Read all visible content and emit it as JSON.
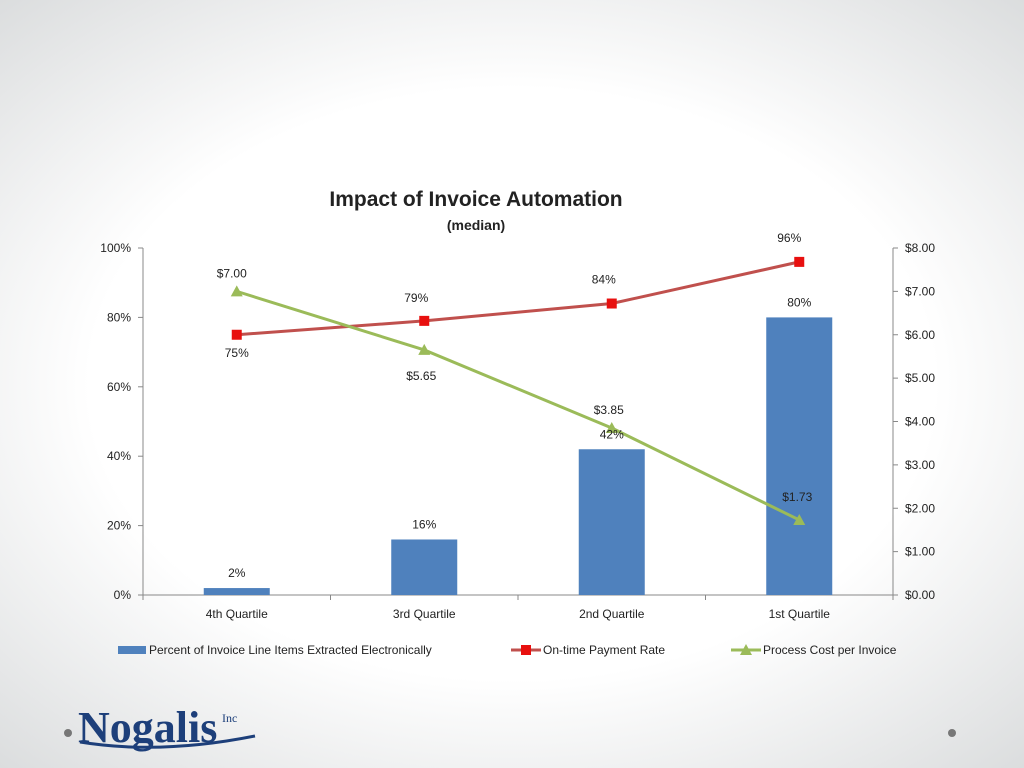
{
  "chart_data": {
    "type": "bar",
    "title": "Impact of Invoice Automation",
    "subtitle": "(median)",
    "categories": [
      "4th Quartile",
      "3rd Quartile",
      "2nd Quartile",
      "1st Quartile"
    ],
    "y_left": {
      "range": [
        0,
        100
      ],
      "ticks": [
        "0%",
        "20%",
        "40%",
        "60%",
        "80%",
        "100%"
      ],
      "tick_values": [
        0,
        20,
        40,
        60,
        80,
        100
      ]
    },
    "y_right": {
      "range": [
        0,
        8
      ],
      "ticks": [
        "$0.00",
        "$1.00",
        "$2.00",
        "$3.00",
        "$4.00",
        "$5.00",
        "$6.00",
        "$7.00",
        "$8.00"
      ],
      "tick_values": [
        0,
        1,
        2,
        3,
        4,
        5,
        6,
        7,
        8
      ]
    },
    "grid": false,
    "legend_position": "bottom",
    "series": [
      {
        "name": "Percent of Invoice Line Items Extracted Electronically",
        "kind": "bar",
        "axis": "left",
        "color": "#4f81bd",
        "values": [
          2,
          16,
          42,
          80
        ],
        "labels": [
          "2%",
          "16%",
          "42%",
          "80%"
        ]
      },
      {
        "name": "On-time Payment Rate",
        "kind": "line",
        "marker": "square",
        "axis": "left",
        "color": "#c0504d",
        "marker_color": "#e8100f",
        "values": [
          75,
          79,
          84,
          96
        ],
        "labels": [
          "75%",
          "79%",
          "84%",
          "96%"
        ]
      },
      {
        "name": "Process Cost per Invoice",
        "kind": "line",
        "marker": "triangle",
        "axis": "right",
        "color": "#9bbb59",
        "values": [
          7.0,
          5.65,
          3.85,
          1.73
        ],
        "labels": [
          "$7.00",
          "$5.65",
          "$3.85",
          "$1.73"
        ]
      }
    ]
  },
  "logo": {
    "name": "Nogalis",
    "suffix": "Inc"
  }
}
